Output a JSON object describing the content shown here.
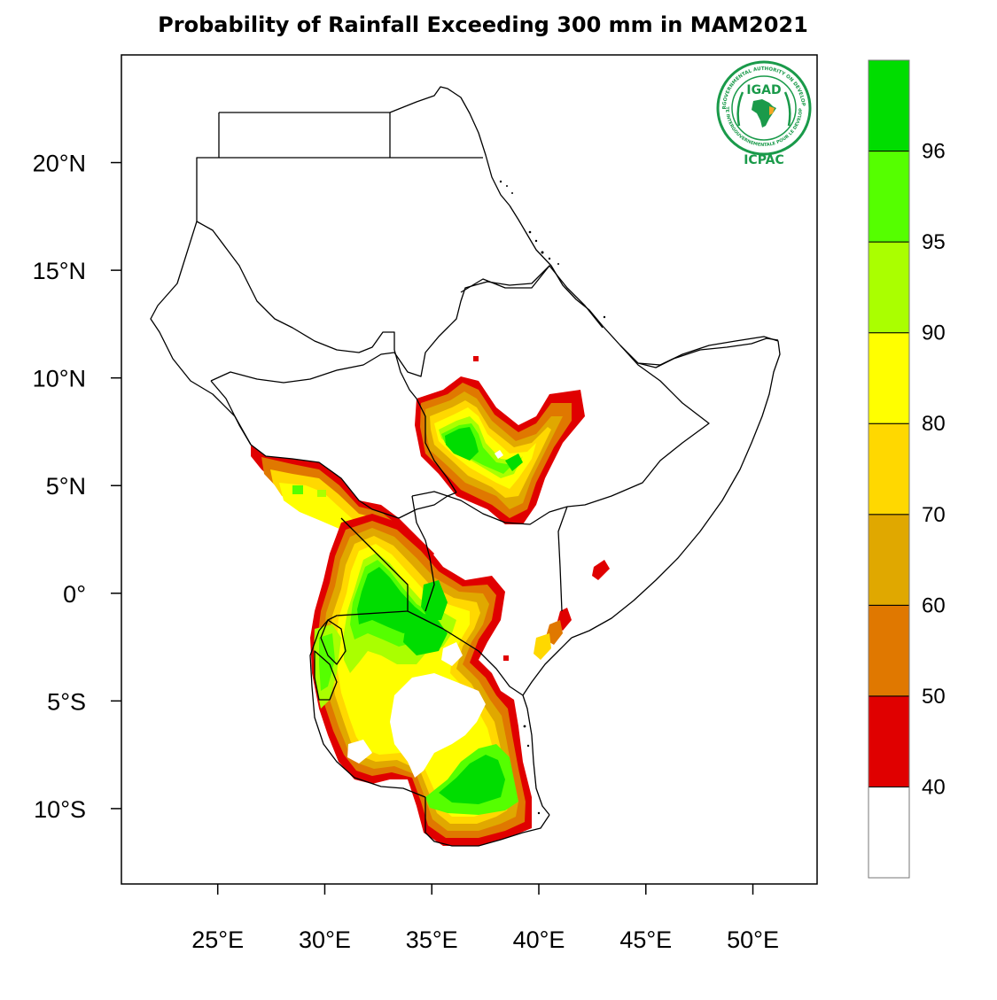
{
  "title": "Probability of Rainfall Exceeding 300 mm in MAM2021",
  "map": {
    "lon_range": [
      20.5,
      53
    ],
    "lat_range": [
      -13.5,
      25
    ],
    "lat_ticks": [
      {
        "value": 20,
        "label": "20°N"
      },
      {
        "value": 15,
        "label": "15°N"
      },
      {
        "value": 10,
        "label": "10°N"
      },
      {
        "value": 5,
        "label": "5°N"
      },
      {
        "value": 0,
        "label": "0°"
      },
      {
        "value": -5,
        "label": "5°S"
      },
      {
        "value": -10,
        "label": "10°S"
      }
    ],
    "lon_ticks": [
      {
        "value": 25,
        "label": "25°E"
      },
      {
        "value": 30,
        "label": "30°E"
      },
      {
        "value": 35,
        "label": "35°E"
      },
      {
        "value": 40,
        "label": "40°E"
      },
      {
        "value": 45,
        "label": "45°E"
      },
      {
        "value": 50,
        "label": "50°E"
      }
    ]
  },
  "colorbar": {
    "levels": [
      {
        "label": "",
        "color": "#ffffff"
      },
      {
        "label": "40",
        "color": "#e00000"
      },
      {
        "label": "50",
        "color": "#e07800"
      },
      {
        "label": "60",
        "color": "#e0a800"
      },
      {
        "label": "70",
        "color": "#ffd800"
      },
      {
        "label": "80",
        "color": "#ffff00"
      },
      {
        "label": "90",
        "color": "#aaff00"
      },
      {
        "label": "95",
        "color": "#55ff00"
      },
      {
        "label": "96",
        "color": "#00dd00"
      }
    ]
  },
  "logo": {
    "top_text": "IGAD",
    "bottom_text": "ICPAC",
    "ring_text_top": "INTERGOVERNMENTAL AUTHORITY ON DEVELOPMENT",
    "ring_text_bottom": "AUTORITE INTERGOUVERNEMENTALE POUR LE DEVELOPPEMENT",
    "color": "#1a9a4a"
  }
}
